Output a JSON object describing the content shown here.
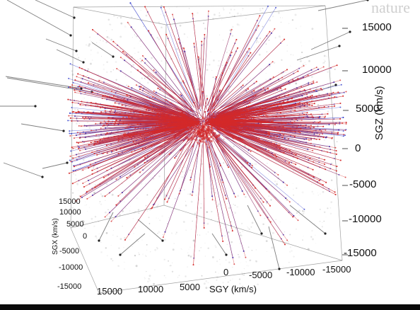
{
  "watermark": "nature",
  "axes": {
    "sgz": {
      "label": "SGZ (km/s)",
      "ticks": [
        "15000",
        "10000",
        "5000",
        "0",
        "-5000",
        "-10000",
        "-15000"
      ]
    },
    "sgy": {
      "label": "SGY (km/s)",
      "ticks": [
        "15000",
        "10000",
        "5000",
        "0",
        "-5000",
        "-10000",
        "-15000"
      ]
    },
    "sgx": {
      "label": "SGX (km/s)",
      "ticks": [
        "15000",
        "10000",
        "5000",
        "0",
        "-5000",
        "-10000",
        "-15000"
      ]
    }
  },
  "colors": {
    "outflow": "#d42a2a",
    "inflow": "#2a34c8",
    "background_structure": "#9a9a9a",
    "frame": "#555555",
    "bottom_bar": "#0a0a0a"
  }
}
